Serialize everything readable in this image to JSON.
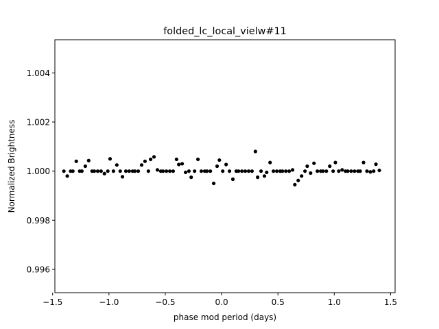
{
  "chart_data": {
    "type": "scatter",
    "title": "folded_lc_local_vielw#11",
    "xlabel": "phase mod period (days)",
    "ylabel": "Normalized Brightness",
    "xlim": [
      -1.48,
      1.54
    ],
    "ylim": [
      0.99505,
      1.00535
    ],
    "xticks": [
      -1.5,
      -1.0,
      -0.5,
      0.0,
      0.5,
      1.0,
      1.5
    ],
    "xtick_labels": [
      "−1.5",
      "−1.0",
      "−0.5",
      "0.0",
      "0.5",
      "1.0",
      "1.5"
    ],
    "yticks": [
      0.996,
      0.998,
      1.0,
      1.002,
      1.004
    ],
    "ytick_labels": [
      "0.996",
      "0.998",
      "1.000",
      "1.002",
      "1.004"
    ],
    "grid": false,
    "marker_color": "#000000",
    "series": [
      {
        "points": [
          [
            -1.4,
            1.0
          ],
          [
            -1.37,
            0.9998
          ],
          [
            -1.34,
            1.0
          ],
          [
            -1.32,
            1.0
          ],
          [
            -1.29,
            1.0004
          ],
          [
            -1.26,
            1.0
          ],
          [
            -1.24,
            1.0
          ],
          [
            -1.21,
            1.0002
          ],
          [
            -1.18,
            1.00043
          ],
          [
            -1.15,
            1.0
          ],
          [
            -1.13,
            1.0
          ],
          [
            -1.1,
            1.0
          ],
          [
            -1.07,
            1.0
          ],
          [
            -1.04,
            0.9999
          ],
          [
            -1.01,
            1.0
          ],
          [
            -0.99,
            1.0005
          ],
          [
            -0.96,
            1.0
          ],
          [
            -0.93,
            1.00025
          ],
          [
            -0.9,
            1.0
          ],
          [
            -0.88,
            0.99977
          ],
          [
            -0.85,
            1.0
          ],
          [
            -0.82,
            1.0
          ],
          [
            -0.79,
            1.0
          ],
          [
            -0.77,
            1.0
          ],
          [
            -0.74,
            1.0
          ],
          [
            -0.71,
            1.00025
          ],
          [
            -0.68,
            1.0004
          ],
          [
            -0.65,
            1.0
          ],
          [
            -0.63,
            1.00048
          ],
          [
            -0.6,
            1.00058
          ],
          [
            -0.57,
            1.00005
          ],
          [
            -0.54,
            1.0
          ],
          [
            -0.52,
            1.0
          ],
          [
            -0.49,
            1.0
          ],
          [
            -0.46,
            1.0
          ],
          [
            -0.43,
            1.0
          ],
          [
            -0.4,
            1.00048
          ],
          [
            -0.38,
            1.00027
          ],
          [
            -0.35,
            1.0003
          ],
          [
            -0.32,
            0.99995
          ],
          [
            -0.29,
            1.0
          ],
          [
            -0.27,
            0.99975
          ],
          [
            -0.24,
            1.0
          ],
          [
            -0.21,
            1.00048
          ],
          [
            -0.18,
            1.0
          ],
          [
            -0.15,
            1.0
          ],
          [
            -0.13,
            1.0
          ],
          [
            -0.1,
            1.0
          ],
          [
            -0.07,
            0.9995
          ],
          [
            -0.04,
            1.0002
          ],
          [
            -0.02,
            1.00045
          ],
          [
            0.01,
            1.0
          ],
          [
            0.04,
            1.00027
          ],
          [
            0.07,
            1.0
          ],
          [
            0.1,
            0.99967
          ],
          [
            0.13,
            1.0
          ],
          [
            0.15,
            1.0
          ],
          [
            0.18,
            1.0
          ],
          [
            0.21,
            1.0
          ],
          [
            0.24,
            1.0
          ],
          [
            0.27,
            1.0
          ],
          [
            0.3,
            1.0008
          ],
          [
            0.32,
            0.99975
          ],
          [
            0.35,
            1.0
          ],
          [
            0.38,
            0.9998
          ],
          [
            0.4,
            0.99995
          ],
          [
            0.43,
            1.00035
          ],
          [
            0.46,
            1.0
          ],
          [
            0.49,
            1.0
          ],
          [
            0.52,
            1.0
          ],
          [
            0.54,
            1.0
          ],
          [
            0.57,
            1.0
          ],
          [
            0.6,
            1.0
          ],
          [
            0.63,
            1.00005
          ],
          [
            0.65,
            0.99945
          ],
          [
            0.68,
            0.99962
          ],
          [
            0.71,
            0.9998
          ],
          [
            0.74,
            1.0
          ],
          [
            0.76,
            1.0002
          ],
          [
            0.79,
            0.99992
          ],
          [
            0.82,
            1.00032
          ],
          [
            0.85,
            1.0
          ],
          [
            0.88,
            1.0
          ],
          [
            0.9,
            1.0
          ],
          [
            0.93,
            1.0
          ],
          [
            0.96,
            1.0002
          ],
          [
            0.99,
            1.0
          ],
          [
            1.01,
            1.00035
          ],
          [
            1.04,
            1.0
          ],
          [
            1.07,
            1.00005
          ],
          [
            1.1,
            1.0
          ],
          [
            1.12,
            1.0
          ],
          [
            1.15,
            1.0
          ],
          [
            1.18,
            1.0
          ],
          [
            1.21,
            1.0
          ],
          [
            1.23,
            1.0
          ],
          [
            1.26,
            1.00035
          ],
          [
            1.29,
            1.0
          ],
          [
            1.32,
            0.99997
          ],
          [
            1.35,
            1.0
          ],
          [
            1.37,
            1.00028
          ],
          [
            1.4,
            1.00003
          ]
        ]
      }
    ]
  }
}
